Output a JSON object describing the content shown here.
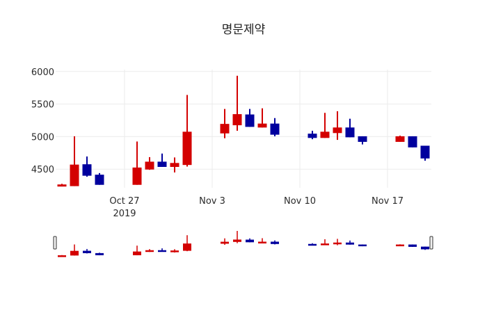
{
  "chart_data": {
    "type": "candlestick",
    "title": "명문제약",
    "xlabel": "",
    "ylabel": "",
    "ylim": [
      4214,
      6030
    ],
    "grid": true,
    "legend": "none",
    "increasing_color": "#d30000",
    "decreasing_color": "#00009e",
    "y_ticks": [
      4500,
      5000,
      5500,
      6000
    ],
    "x_ticks": [
      {
        "date": "2019-10-27",
        "label": "Oct 27",
        "sublabel": "2019"
      },
      {
        "date": "2019-11-03",
        "label": "Nov 3",
        "sublabel": ""
      },
      {
        "date": "2019-11-10",
        "label": "Nov 10",
        "sublabel": ""
      },
      {
        "date": "2019-11-17",
        "label": "Nov 17",
        "sublabel": ""
      }
    ],
    "x_range": [
      "2019-10-21T12:00",
      "2019-11-20T12:00"
    ],
    "range_slider": true,
    "candles": [
      {
        "date": "2019-10-22",
        "open": 4245,
        "high": 4275,
        "low": 4235,
        "close": 4260
      },
      {
        "date": "2019-10-23",
        "open": 4245,
        "high": 5005,
        "low": 4240,
        "close": 4565
      },
      {
        "date": "2019-10-24",
        "open": 4570,
        "high": 4695,
        "low": 4385,
        "close": 4405
      },
      {
        "date": "2019-10-25",
        "open": 4410,
        "high": 4440,
        "low": 4260,
        "close": 4265
      },
      {
        "date": "2019-10-28",
        "open": 4265,
        "high": 4925,
        "low": 4260,
        "close": 4520
      },
      {
        "date": "2019-10-29",
        "open": 4500,
        "high": 4685,
        "low": 4490,
        "close": 4610
      },
      {
        "date": "2019-10-30",
        "open": 4610,
        "high": 4740,
        "low": 4535,
        "close": 4540
      },
      {
        "date": "2019-10-31",
        "open": 4540,
        "high": 4680,
        "low": 4450,
        "close": 4590
      },
      {
        "date": "2019-11-01",
        "open": 4570,
        "high": 5640,
        "low": 4540,
        "close": 5070
      },
      {
        "date": "2019-11-04",
        "open": 5055,
        "high": 5425,
        "low": 4975,
        "close": 5190
      },
      {
        "date": "2019-11-05",
        "open": 5180,
        "high": 5935,
        "low": 5090,
        "close": 5340
      },
      {
        "date": "2019-11-06",
        "open": 5335,
        "high": 5425,
        "low": 5150,
        "close": 5155
      },
      {
        "date": "2019-11-07",
        "open": 5145,
        "high": 5435,
        "low": 5140,
        "close": 5195
      },
      {
        "date": "2019-11-08",
        "open": 5195,
        "high": 5285,
        "low": 5005,
        "close": 5035
      },
      {
        "date": "2019-11-11",
        "open": 5040,
        "high": 5090,
        "low": 4960,
        "close": 4985
      },
      {
        "date": "2019-11-12",
        "open": 4985,
        "high": 5365,
        "low": 4980,
        "close": 5070
      },
      {
        "date": "2019-11-13",
        "open": 5060,
        "high": 5390,
        "low": 4950,
        "close": 5135
      },
      {
        "date": "2019-11-14",
        "open": 5135,
        "high": 5275,
        "low": 4990,
        "close": 4995
      },
      {
        "date": "2019-11-15",
        "open": 5000,
        "high": 5005,
        "low": 4880,
        "close": 4925
      },
      {
        "date": "2019-11-18",
        "open": 4925,
        "high": 5015,
        "low": 4920,
        "close": 5000
      },
      {
        "date": "2019-11-19",
        "open": 5000,
        "high": 5005,
        "low": 4835,
        "close": 4840
      },
      {
        "date": "2019-11-20",
        "open": 4855,
        "high": 4860,
        "low": 4630,
        "close": 4670
      }
    ]
  }
}
